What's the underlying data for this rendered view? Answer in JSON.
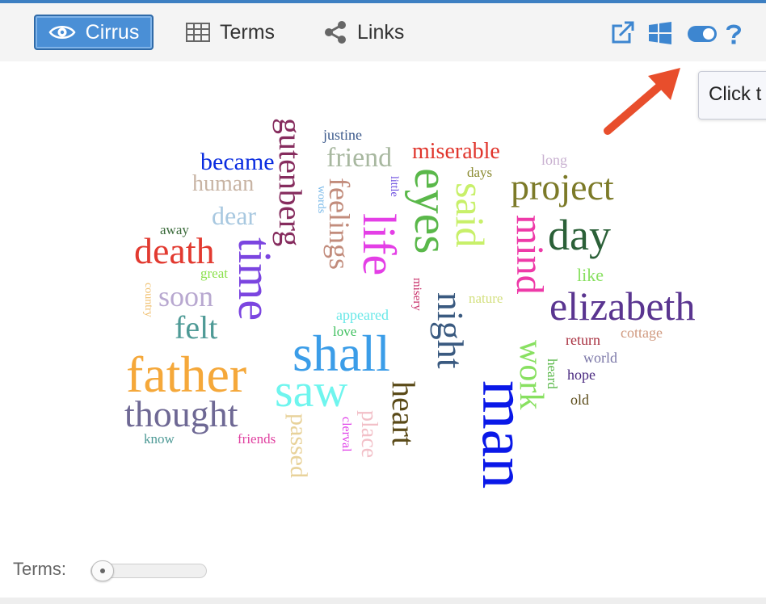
{
  "tabs": {
    "cirrus": "Cirrus",
    "terms": "Terms",
    "links": "Links"
  },
  "tooltip": {
    "text": "Click t"
  },
  "footer": {
    "terms_label": "Terms:"
  },
  "slider": {
    "value_fraction": 0.05
  },
  "icons": {
    "export": "external-link-icon",
    "windows": "windows-icon",
    "toggle": "toggle-icon",
    "help": "help-icon"
  },
  "colors": {
    "accent": "#4a8fd6",
    "arrow": "#e84e2c"
  },
  "words": [
    {
      "text": "man",
      "color": "#0a18e8"
    },
    {
      "text": "father",
      "color": "#f5a83a"
    },
    {
      "text": "shall",
      "color": "#3b9de8"
    },
    {
      "text": "saw",
      "color": "#6ff5ee"
    },
    {
      "text": "time",
      "color": "#7b45e0"
    },
    {
      "text": "thought",
      "color": "#6e6894"
    },
    {
      "text": "elizabeth",
      "color": "#5a3590"
    },
    {
      "text": "project",
      "color": "#7c7a28"
    },
    {
      "text": "day",
      "color": "#2b6038"
    },
    {
      "text": "eyes",
      "color": "#5ab84a"
    },
    {
      "text": "life",
      "color": "#e43fe6"
    },
    {
      "text": "night",
      "color": "#3a5a80"
    },
    {
      "text": "said",
      "color": "#c8f06a"
    },
    {
      "text": "mind",
      "color": "#ee3aa8"
    },
    {
      "text": "work",
      "color": "#88e060"
    },
    {
      "text": "heart",
      "color": "#5a4a18"
    },
    {
      "text": "gutenberg",
      "color": "#862c5e"
    },
    {
      "text": "death",
      "color": "#e23a30"
    },
    {
      "text": "feelings",
      "color": "#c28c7c"
    },
    {
      "text": "friend",
      "color": "#a8b8a0"
    },
    {
      "text": "miserable",
      "color": "#e0352c"
    },
    {
      "text": "became",
      "color": "#0a2ce0"
    },
    {
      "text": "human",
      "color": "#c8b4a4"
    },
    {
      "text": "dear",
      "color": "#a8c8e0"
    },
    {
      "text": "soon",
      "color": "#b8a8d0"
    },
    {
      "text": "felt",
      "color": "#4e9a96"
    },
    {
      "text": "passed",
      "color": "#e8d29a"
    },
    {
      "text": "place",
      "color": "#f2c0c8"
    },
    {
      "text": "justine",
      "color": "#3c5a8c"
    },
    {
      "text": "long",
      "color": "#c8b0d0"
    },
    {
      "text": "days",
      "color": "#8a8a30"
    },
    {
      "text": "little",
      "color": "#6c4ee0"
    },
    {
      "text": "words",
      "color": "#78b8e8"
    },
    {
      "text": "away",
      "color": "#3a6a3a"
    },
    {
      "text": "great",
      "color": "#8ae04a"
    },
    {
      "text": "country",
      "color": "#f0c070"
    },
    {
      "text": "appeared",
      "color": "#6ae8e8"
    },
    {
      "text": "misery",
      "color": "#c8306a"
    },
    {
      "text": "love",
      "color": "#40c060"
    },
    {
      "text": "nature",
      "color": "#d4e080"
    },
    {
      "text": "like",
      "color": "#88e060"
    },
    {
      "text": "return",
      "color": "#a83040"
    },
    {
      "text": "cottage",
      "color": "#d09a80"
    },
    {
      "text": "world",
      "color": "#7c78a8"
    },
    {
      "text": "heard",
      "color": "#5ab84a"
    },
    {
      "text": "hope",
      "color": "#4a2a80"
    },
    {
      "text": "old",
      "color": "#5a4a18"
    },
    {
      "text": "know",
      "color": "#4e9a96"
    },
    {
      "text": "friends",
      "color": "#e040a0"
    },
    {
      "text": "clerval",
      "color": "#e040e8"
    }
  ]
}
